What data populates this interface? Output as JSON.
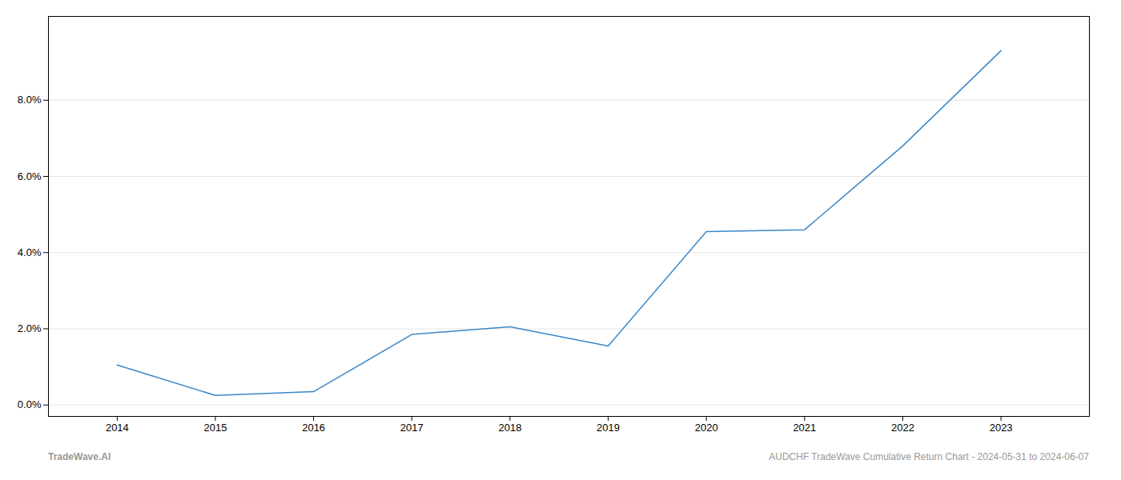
{
  "chart_data": {
    "type": "line",
    "x": [
      2014,
      2015,
      2016,
      2017,
      2018,
      2019,
      2020,
      2021,
      2022,
      2023
    ],
    "values": [
      1.05,
      0.25,
      0.35,
      1.85,
      2.05,
      1.55,
      4.55,
      4.6,
      6.8,
      9.3
    ],
    "color": "#3a87c8",
    "xlim": [
      2013.3,
      2023.9
    ],
    "xticks": [
      2014,
      2015,
      2016,
      2017,
      2018,
      2019,
      2020,
      2021,
      2022,
      2023
    ],
    "ylim": [
      -0.3,
      10.2
    ],
    "yticks": [
      {
        "value": 0.0,
        "label": "0.0%"
      },
      {
        "value": 2.0,
        "label": "2.0%"
      },
      {
        "value": 4.0,
        "label": "4.0%"
      },
      {
        "value": 6.0,
        "label": "6.0%"
      },
      {
        "value": 8.0,
        "label": "8.0%"
      }
    ],
    "grid": "y",
    "annotations": [
      "TradeWave.AI",
      "AUDCHF TradeWave Cumulative Return Chart - 2024-05-31 to 2024-06-07"
    ]
  }
}
